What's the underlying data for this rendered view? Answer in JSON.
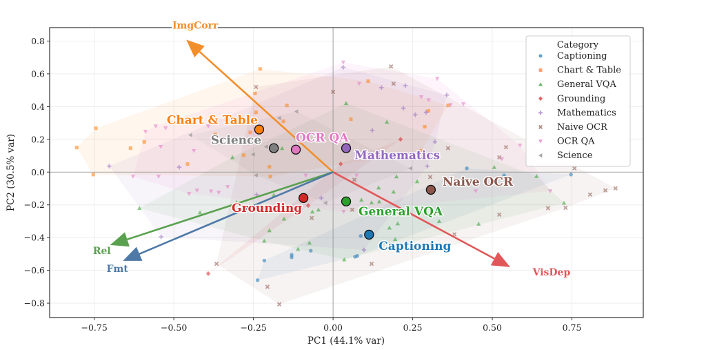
{
  "chart_data": {
    "type": "scatter",
    "title": "",
    "xlabel": "PC1 (44.1% var)",
    "ylabel": "PC2 (30.5% var)",
    "xlim": [
      -0.89,
      0.974
    ],
    "ylim": [
      -0.888,
      0.882
    ],
    "xticks": [
      -0.75,
      -0.5,
      -0.25,
      0.0,
      0.25,
      0.5,
      0.75
    ],
    "xtick_labels": [
      "−0.75",
      "−0.50",
      "−0.25",
      "0.00",
      "0.25",
      "0.50",
      "0.75"
    ],
    "yticks": [
      0.8,
      0.6,
      0.4,
      0.2,
      0.0,
      -0.2,
      -0.4,
      -0.6,
      -0.8
    ],
    "ytick_labels": [
      "0.8",
      "0.6",
      "0.4",
      "0.2",
      "0.0",
      "−0.2",
      "−0.4",
      "−0.6",
      "−0.8"
    ],
    "grid": true,
    "legend": {
      "title": "Category",
      "placement": "top-right"
    },
    "series": [
      {
        "name": "Captioning",
        "color": "#1f77b4",
        "marker": "circle",
        "centroid": [
          0.113,
          -0.382
        ],
        "points": [
          [
            -0.216,
            -0.54
          ],
          [
            -0.13,
            -0.505
          ],
          [
            -0.13,
            -0.52
          ],
          [
            -0.07,
            -0.48
          ],
          [
            -0.237,
            -0.66
          ],
          [
            0.087,
            -0.39
          ],
          [
            0.069,
            -0.517
          ],
          [
            0.076,
            -0.512
          ],
          [
            0.42,
            0.023
          ],
          [
            0.747,
            -0.015
          ],
          [
            0.537,
            -0.02
          ]
        ]
      },
      {
        "name": "Chart & Table",
        "color": "#ff7f0e",
        "marker": "square",
        "centroid": [
          -0.232,
          0.26
        ],
        "points": [
          [
            -0.805,
            0.15
          ],
          [
            -0.745,
            0.268
          ],
          [
            -0.753,
            -0.015
          ],
          [
            -0.636,
            0.146
          ],
          [
            -0.593,
            0.184
          ],
          [
            -0.457,
            0.049
          ],
          [
            -0.37,
            0.23
          ],
          [
            -0.229,
            0.63
          ],
          [
            -0.245,
            0.48
          ],
          [
            -0.242,
            0.365
          ],
          [
            -0.26,
            0.243
          ],
          [
            -0.145,
            0.407
          ],
          [
            -0.156,
            0.31
          ],
          [
            -0.281,
            0.103
          ],
          [
            -0.2,
            0.032
          ],
          [
            -0.197,
            -0.027
          ],
          [
            0.056,
            0.323
          ],
          [
            0.11,
            0.555
          ],
          [
            0.299,
            0.374
          ],
          [
            0.288,
            0.277
          ],
          [
            0.361,
            0.407
          ],
          [
            0.277,
            0.13
          ]
        ]
      },
      {
        "name": "General VQA",
        "color": "#2ca02c",
        "marker": "triangle-up",
        "centroid": [
          0.041,
          -0.179
        ],
        "points": [
          [
            0.041,
            0.42
          ],
          [
            -0.16,
            0.146
          ],
          [
            -0.316,
            0.09
          ],
          [
            -0.608,
            -0.22
          ],
          [
            -0.418,
            -0.246
          ],
          [
            -0.303,
            -0.184
          ],
          [
            -0.186,
            -0.14
          ],
          [
            -0.154,
            -0.285
          ],
          [
            -0.2,
            -0.356
          ],
          [
            -0.216,
            -0.42
          ],
          [
            -0.11,
            -0.47
          ],
          [
            -0.074,
            -0.432
          ],
          [
            -0.065,
            -0.242
          ],
          [
            -0.046,
            -0.23
          ],
          [
            0.035,
            -0.534
          ],
          [
            0.169,
            0.306
          ],
          [
            0.199,
            -0.027
          ],
          [
            0.143,
            -0.095
          ],
          [
            0.19,
            -0.12
          ],
          [
            0.264,
            -0.057
          ],
          [
            0.089,
            -0.17
          ],
          [
            0.121,
            -0.186
          ],
          [
            0.145,
            -0.18
          ],
          [
            0.203,
            -0.314
          ],
          [
            0.177,
            -0.34
          ],
          [
            0.333,
            -0.3
          ],
          [
            0.457,
            -0.316
          ],
          [
            0.506,
            0.03
          ],
          [
            0.639,
            -0.025
          ],
          [
            0.725,
            -0.188
          ],
          [
            0.195,
            -0.41
          ]
        ]
      },
      {
        "name": "Grounding",
        "color": "#d62728",
        "marker": "diamond",
        "centroid": [
          -0.093,
          -0.158
        ],
        "points": [
          [
            0.024,
            0.05
          ],
          [
            -0.078,
            -0.204
          ],
          [
            -0.392,
            -0.62
          ],
          [
            0.212,
            0.2
          ]
        ]
      },
      {
        "name": "Mathematics",
        "color": "#9467bd",
        "marker": "plus",
        "centroid": [
          0.041,
          0.146
        ],
        "points": [
          [
            -0.703,
            0.036
          ],
          [
            -0.483,
            0.03
          ],
          [
            -0.54,
            -0.395
          ],
          [
            -0.24,
            -0.138
          ],
          [
            -0.037,
            -0.158
          ],
          [
            0.032,
            0.64
          ],
          [
            0.152,
            0.516
          ],
          [
            0.227,
            0.528
          ],
          [
            0.357,
            0.47
          ],
          [
            0.221,
            0.39
          ],
          [
            0.258,
            0.35
          ],
          [
            0.292,
            0.365
          ],
          [
            0.123,
            0.255
          ],
          [
            0.32,
            0.184
          ],
          [
            0.296,
            0.036
          ],
          [
            0.097,
            -0.475
          ]
        ]
      },
      {
        "name": "Naive OCR",
        "color": "#8c564b",
        "marker": "x",
        "centroid": [
          0.307,
          -0.108
        ],
        "points": [
          [
            -0.242,
            0.52
          ],
          [
            0.0,
            0.49
          ],
          [
            -0.067,
            -0.28
          ],
          [
            -0.366,
            -0.56
          ],
          [
            -0.206,
            -0.7
          ],
          [
            -0.169,
            -0.807
          ],
          [
            0.182,
            0.645
          ],
          [
            0.19,
            0.54
          ],
          [
            0.361,
            0.146
          ],
          [
            0.543,
            0.152
          ],
          [
            0.522,
            0.09
          ],
          [
            0.305,
            -0.03
          ],
          [
            0.067,
            -0.047
          ],
          [
            0.06,
            -0.23
          ],
          [
            0.522,
            -0.26
          ],
          [
            0.675,
            -0.22
          ],
          [
            0.73,
            -0.218
          ],
          [
            0.807,
            -0.137
          ],
          [
            0.855,
            -0.112
          ],
          [
            0.887,
            -0.099
          ],
          [
            0.758,
            0.023
          ],
          [
            0.121,
            -0.56
          ],
          [
            0.381,
            -0.38
          ]
        ]
      },
      {
        "name": "OCR QA",
        "color": "#e377c2",
        "marker": "triangle-down",
        "centroid": [
          -0.117,
          0.137
        ],
        "points": [
          [
            -0.557,
            0.28
          ],
          [
            -0.526,
            0.268
          ],
          [
            -0.589,
            0.247
          ],
          [
            -0.541,
            0.155
          ],
          [
            -0.437,
            0.13
          ],
          [
            -0.628,
            -0.027
          ],
          [
            -0.548,
            -0.027
          ],
          [
            -0.331,
            -0.09
          ],
          [
            -0.452,
            -0.133
          ],
          [
            -0.427,
            -0.112
          ],
          [
            -0.383,
            -0.117
          ],
          [
            -0.359,
            -0.125
          ],
          [
            -0.086,
            -0.02
          ],
          [
            -0.392,
            0.28
          ],
          [
            0.032,
            0.67
          ],
          [
            0.033,
            -0.242
          ],
          [
            0.082,
            0.54
          ],
          [
            0.277,
            0.458
          ],
          [
            0.3,
            0.44
          ],
          [
            0.327,
            0.57
          ],
          [
            0.409,
            0.415
          ],
          [
            0.369,
            0.41
          ],
          [
            0.587,
            0.163
          ],
          [
            0.53,
            0.08
          ],
          [
            0.448,
            -0.116
          ],
          [
            0.682,
            -0.116
          ],
          [
            0.074,
            -0.02
          ]
        ]
      },
      {
        "name": "Science",
        "color": "#7f7f7f",
        "marker": "triangle-left",
        "centroid": [
          -0.186,
          0.146
        ],
        "points": [
          [
            -0.448,
            0.226
          ],
          [
            -0.21,
            0.155
          ],
          [
            -0.251,
            0.108
          ],
          [
            -0.169,
            0.33
          ],
          [
            -0.115,
            0.37
          ],
          [
            -0.242,
            -0.02
          ],
          [
            -0.024,
            -0.188
          ],
          [
            0.243,
            0.023
          ]
        ]
      }
    ],
    "loadings": [
      {
        "name": "ImgCorr",
        "color": "#f28e2b",
        "vector": [
          -0.461,
          0.808
        ]
      },
      {
        "name": "Rel",
        "color": "#59a14f",
        "vector": [
          -0.7,
          -0.445
        ]
      },
      {
        "name": "Fmt",
        "color": "#4e79a7",
        "vector": [
          -0.66,
          -0.542
        ]
      },
      {
        "name": "VisDep",
        "color": "#e15759",
        "vector": [
          0.556,
          -0.58
        ]
      }
    ]
  }
}
